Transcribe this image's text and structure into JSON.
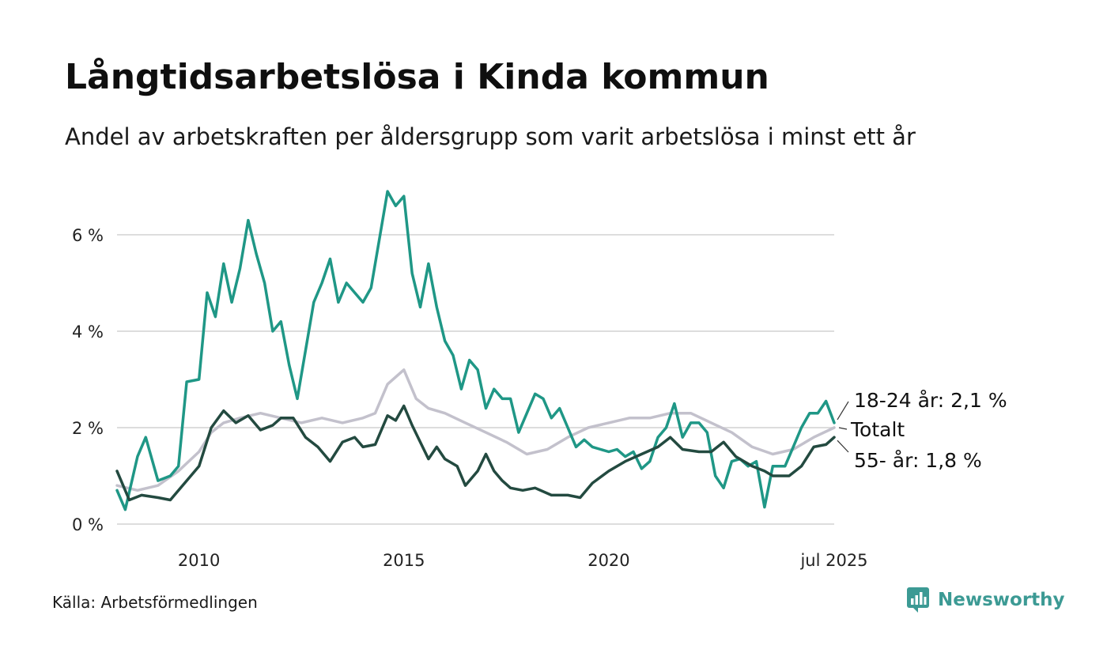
{
  "title": "Långtidsarbetslösa i Kinda kommun",
  "subtitle": "Andel av arbetskraften per åldersgrupp som varit arbetslösa i minst ett år",
  "source": "Källa: Arbetsförmedlingen",
  "brand": "Newsworthy",
  "colors": {
    "young": "#1f9786",
    "total": "#c3c1cc",
    "old": "#234a40",
    "grid": "#dddddd",
    "brand": "#3c9a94"
  },
  "chart_data": {
    "type": "line",
    "x_ticks": [
      {
        "label": "2010",
        "x": 2010.0
      },
      {
        "label": "2015",
        "x": 2015.0
      },
      {
        "label": "2020",
        "x": 2020.0
      },
      {
        "label": "jul 2025",
        "x": 2025.5
      }
    ],
    "y_ticks": [
      {
        "label": "0 %",
        "y": 0
      },
      {
        "label": "2 %",
        "y": 2
      },
      {
        "label": "4 %",
        "y": 4
      },
      {
        "label": "6 %",
        "y": 6
      }
    ],
    "xlim": [
      2008.0,
      2025.5
    ],
    "ylim": [
      0,
      7
    ],
    "grid": true,
    "series": [
      {
        "key": "total",
        "label": "Totalt",
        "points": [
          [
            2008.0,
            0.8
          ],
          [
            2008.5,
            0.7
          ],
          [
            2009.0,
            0.8
          ],
          [
            2009.5,
            1.1
          ],
          [
            2010.0,
            1.5
          ],
          [
            2010.3,
            1.9
          ],
          [
            2010.6,
            2.1
          ],
          [
            2011.0,
            2.2
          ],
          [
            2011.5,
            2.3
          ],
          [
            2012.0,
            2.2
          ],
          [
            2012.5,
            2.1
          ],
          [
            2013.0,
            2.2
          ],
          [
            2013.5,
            2.1
          ],
          [
            2014.0,
            2.2
          ],
          [
            2014.3,
            2.3
          ],
          [
            2014.6,
            2.9
          ],
          [
            2015.0,
            3.2
          ],
          [
            2015.3,
            2.6
          ],
          [
            2015.6,
            2.4
          ],
          [
            2016.0,
            2.3
          ],
          [
            2016.5,
            2.1
          ],
          [
            2017.0,
            1.9
          ],
          [
            2017.5,
            1.7
          ],
          [
            2018.0,
            1.45
          ],
          [
            2018.5,
            1.55
          ],
          [
            2019.0,
            1.8
          ],
          [
            2019.5,
            2.0
          ],
          [
            2020.0,
            2.1
          ],
          [
            2020.5,
            2.2
          ],
          [
            2021.0,
            2.2
          ],
          [
            2021.5,
            2.3
          ],
          [
            2022.0,
            2.3
          ],
          [
            2022.5,
            2.1
          ],
          [
            2023.0,
            1.9
          ],
          [
            2023.5,
            1.6
          ],
          [
            2024.0,
            1.45
          ],
          [
            2024.5,
            1.55
          ],
          [
            2025.0,
            1.8
          ],
          [
            2025.5,
            2.0
          ]
        ]
      },
      {
        "key": "young",
        "label": "18-24 år: 2,1 %",
        "points": [
          [
            2008.0,
            0.7
          ],
          [
            2008.2,
            0.3
          ],
          [
            2008.5,
            1.4
          ],
          [
            2008.7,
            1.8
          ],
          [
            2009.0,
            0.9
          ],
          [
            2009.3,
            1.0
          ],
          [
            2009.5,
            1.2
          ],
          [
            2009.7,
            2.95
          ],
          [
            2010.0,
            3.0
          ],
          [
            2010.2,
            4.8
          ],
          [
            2010.4,
            4.3
          ],
          [
            2010.6,
            5.4
          ],
          [
            2010.8,
            4.6
          ],
          [
            2011.0,
            5.3
          ],
          [
            2011.2,
            6.3
          ],
          [
            2011.4,
            5.6
          ],
          [
            2011.6,
            5.0
          ],
          [
            2011.8,
            4.0
          ],
          [
            2012.0,
            4.2
          ],
          [
            2012.2,
            3.3
          ],
          [
            2012.4,
            2.6
          ],
          [
            2012.6,
            3.6
          ],
          [
            2012.8,
            4.6
          ],
          [
            2013.0,
            5.0
          ],
          [
            2013.2,
            5.5
          ],
          [
            2013.4,
            4.6
          ],
          [
            2013.6,
            5.0
          ],
          [
            2013.8,
            4.8
          ],
          [
            2014.0,
            4.6
          ],
          [
            2014.2,
            4.9
          ],
          [
            2014.4,
            5.9
          ],
          [
            2014.6,
            6.9
          ],
          [
            2014.8,
            6.6
          ],
          [
            2015.0,
            6.8
          ],
          [
            2015.2,
            5.2
          ],
          [
            2015.4,
            4.5
          ],
          [
            2015.6,
            5.4
          ],
          [
            2015.8,
            4.5
          ],
          [
            2016.0,
            3.8
          ],
          [
            2016.2,
            3.5
          ],
          [
            2016.4,
            2.8
          ],
          [
            2016.6,
            3.4
          ],
          [
            2016.8,
            3.2
          ],
          [
            2017.0,
            2.4
          ],
          [
            2017.2,
            2.8
          ],
          [
            2017.4,
            2.6
          ],
          [
            2017.6,
            2.6
          ],
          [
            2017.8,
            1.9
          ],
          [
            2018.0,
            2.3
          ],
          [
            2018.2,
            2.7
          ],
          [
            2018.4,
            2.6
          ],
          [
            2018.6,
            2.2
          ],
          [
            2018.8,
            2.4
          ],
          [
            2019.0,
            2.0
          ],
          [
            2019.2,
            1.6
          ],
          [
            2019.4,
            1.75
          ],
          [
            2019.6,
            1.6
          ],
          [
            2019.8,
            1.55
          ],
          [
            2020.0,
            1.5
          ],
          [
            2020.2,
            1.55
          ],
          [
            2020.4,
            1.4
          ],
          [
            2020.6,
            1.5
          ],
          [
            2020.8,
            1.15
          ],
          [
            2021.0,
            1.3
          ],
          [
            2021.2,
            1.8
          ],
          [
            2021.4,
            2.0
          ],
          [
            2021.6,
            2.5
          ],
          [
            2021.8,
            1.8
          ],
          [
            2022.0,
            2.1
          ],
          [
            2022.2,
            2.1
          ],
          [
            2022.4,
            1.9
          ],
          [
            2022.6,
            1.0
          ],
          [
            2022.8,
            0.75
          ],
          [
            2023.0,
            1.3
          ],
          [
            2023.2,
            1.35
          ],
          [
            2023.4,
            1.2
          ],
          [
            2023.6,
            1.3
          ],
          [
            2023.8,
            0.35
          ],
          [
            2024.0,
            1.2
          ],
          [
            2024.3,
            1.2
          ],
          [
            2024.5,
            1.6
          ],
          [
            2024.7,
            2.0
          ],
          [
            2024.9,
            2.3
          ],
          [
            2025.1,
            2.3
          ],
          [
            2025.3,
            2.55
          ],
          [
            2025.5,
            2.1
          ]
        ]
      },
      {
        "key": "old",
        "label": "55- år: 1,8 %",
        "points": [
          [
            2008.0,
            1.1
          ],
          [
            2008.3,
            0.5
          ],
          [
            2008.6,
            0.6
          ],
          [
            2009.0,
            0.55
          ],
          [
            2009.3,
            0.5
          ],
          [
            2009.6,
            0.8
          ],
          [
            2010.0,
            1.2
          ],
          [
            2010.3,
            2.0
          ],
          [
            2010.6,
            2.35
          ],
          [
            2010.9,
            2.1
          ],
          [
            2011.2,
            2.25
          ],
          [
            2011.5,
            1.95
          ],
          [
            2011.8,
            2.05
          ],
          [
            2012.0,
            2.2
          ],
          [
            2012.3,
            2.2
          ],
          [
            2012.6,
            1.8
          ],
          [
            2012.9,
            1.6
          ],
          [
            2013.2,
            1.3
          ],
          [
            2013.5,
            1.7
          ],
          [
            2013.8,
            1.8
          ],
          [
            2014.0,
            1.6
          ],
          [
            2014.3,
            1.65
          ],
          [
            2014.6,
            2.25
          ],
          [
            2014.8,
            2.15
          ],
          [
            2015.0,
            2.45
          ],
          [
            2015.2,
            2.05
          ],
          [
            2015.4,
            1.7
          ],
          [
            2015.6,
            1.35
          ],
          [
            2015.8,
            1.6
          ],
          [
            2016.0,
            1.35
          ],
          [
            2016.3,
            1.2
          ],
          [
            2016.5,
            0.8
          ],
          [
            2016.8,
            1.1
          ],
          [
            2017.0,
            1.45
          ],
          [
            2017.2,
            1.1
          ],
          [
            2017.4,
            0.9
          ],
          [
            2017.6,
            0.75
          ],
          [
            2017.9,
            0.7
          ],
          [
            2018.2,
            0.75
          ],
          [
            2018.6,
            0.6
          ],
          [
            2019.0,
            0.6
          ],
          [
            2019.3,
            0.55
          ],
          [
            2019.6,
            0.85
          ],
          [
            2020.0,
            1.1
          ],
          [
            2020.4,
            1.3
          ],
          [
            2020.8,
            1.45
          ],
          [
            2021.2,
            1.6
          ],
          [
            2021.5,
            1.8
          ],
          [
            2021.8,
            1.55
          ],
          [
            2022.2,
            1.5
          ],
          [
            2022.5,
            1.5
          ],
          [
            2022.8,
            1.7
          ],
          [
            2023.1,
            1.4
          ],
          [
            2023.5,
            1.2
          ],
          [
            2023.8,
            1.1
          ],
          [
            2024.0,
            1.0
          ],
          [
            2024.4,
            1.0
          ],
          [
            2024.7,
            1.2
          ],
          [
            2025.0,
            1.6
          ],
          [
            2025.3,
            1.65
          ],
          [
            2025.5,
            1.8
          ]
        ]
      }
    ]
  }
}
